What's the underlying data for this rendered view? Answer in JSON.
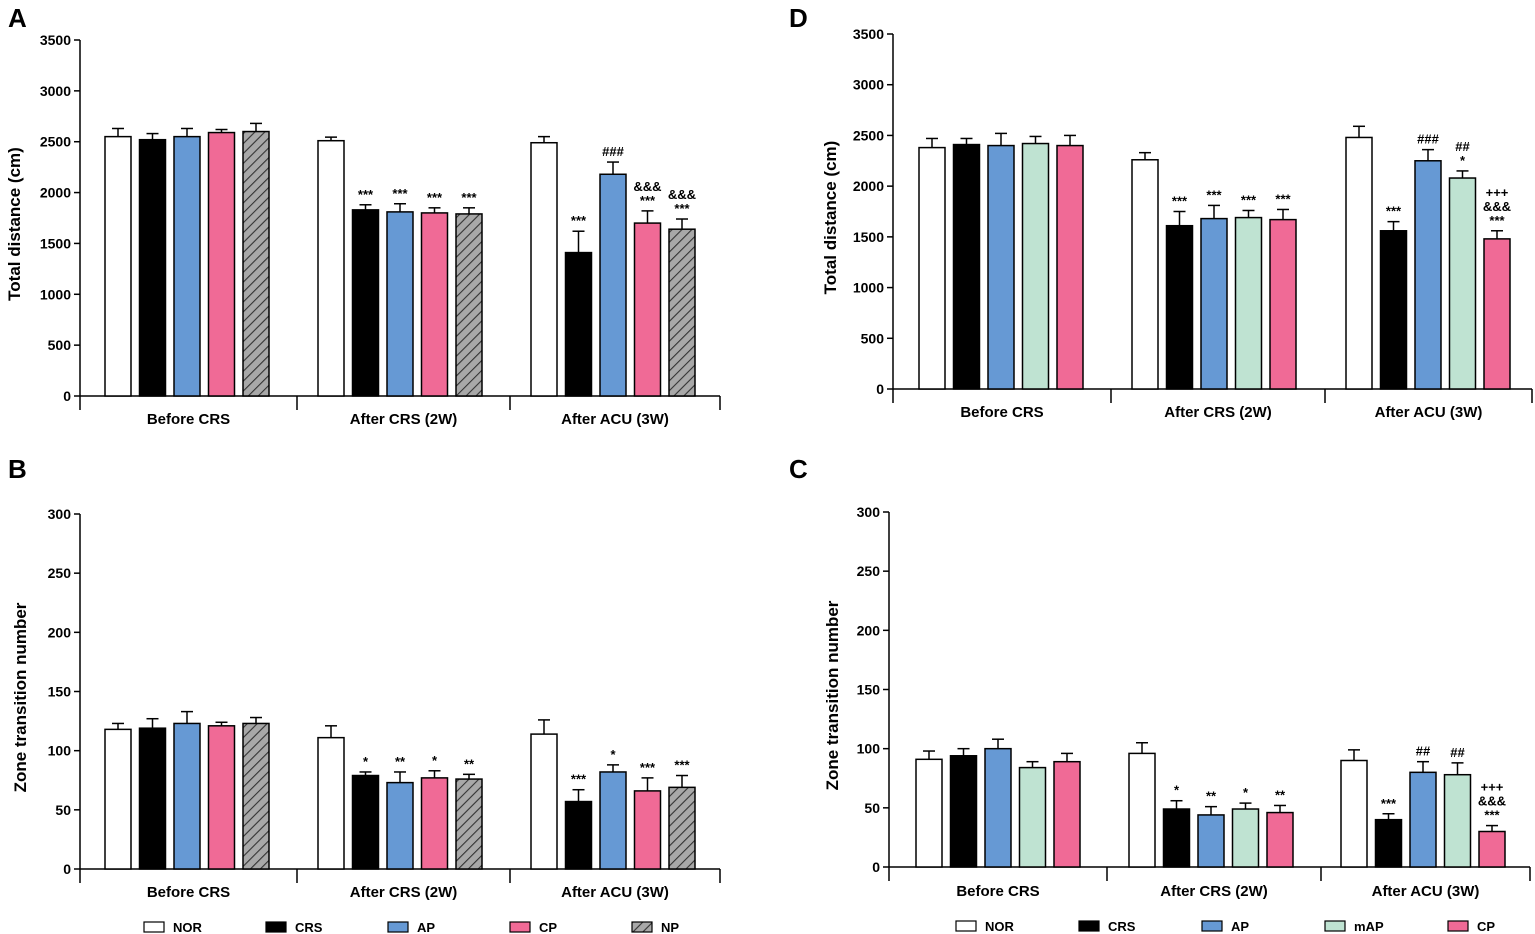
{
  "colors": {
    "NOR": "#ffffff",
    "CRS": "#000000",
    "AP": "#6699d4",
    "CP": "#f06a96",
    "NP": "#a8a8a8",
    "mAP": "#bfe3d2"
  },
  "legend_left": [
    {
      "key": "NOR",
      "label": "NOR"
    },
    {
      "key": "CRS",
      "label": "CRS"
    },
    {
      "key": "AP",
      "label": "AP"
    },
    {
      "key": "CP",
      "label": "CP"
    },
    {
      "key": "NP",
      "label": "NP"
    }
  ],
  "legend_right": [
    {
      "key": "NOR",
      "label": "NOR"
    },
    {
      "key": "CRS",
      "label": "CRS"
    },
    {
      "key": "AP",
      "label": "AP"
    },
    {
      "key": "mAP",
      "label": "mAP"
    },
    {
      "key": "CP",
      "label": "CP"
    }
  ],
  "chart_data": [
    {
      "panel": "A",
      "type": "bar",
      "ylabel": "Total distance (cm)",
      "ylim": [
        0,
        3500
      ],
      "yticks": [
        0,
        500,
        1000,
        1500,
        2000,
        2500,
        3000,
        3500
      ],
      "categories": [
        "Before CRS",
        "After CRS (2W)",
        "After ACU (3W)"
      ],
      "series": [
        {
          "name": "NOR",
          "values": [
            2550,
            2510,
            2490
          ],
          "errors": [
            80,
            35,
            60
          ],
          "annotations": [
            "",
            "",
            ""
          ]
        },
        {
          "name": "CRS",
          "values": [
            2520,
            1830,
            1410
          ],
          "errors": [
            60,
            50,
            210
          ],
          "annotations": [
            "",
            "***",
            "***"
          ]
        },
        {
          "name": "AP",
          "values": [
            2550,
            1810,
            2180
          ],
          "errors": [
            80,
            80,
            120
          ],
          "annotations": [
            "",
            "***",
            "###"
          ]
        },
        {
          "name": "CP",
          "values": [
            2590,
            1800,
            1700
          ],
          "errors": [
            30,
            50,
            120
          ],
          "annotations": [
            "",
            "***",
            "&&&\n***"
          ]
        },
        {
          "name": "NP",
          "values": [
            2600,
            1790,
            1640
          ],
          "errors": [
            80,
            60,
            100
          ],
          "annotations": [
            "",
            "***",
            "&&&\n***"
          ]
        }
      ]
    },
    {
      "panel": "D",
      "type": "bar",
      "ylabel": "Total distance (cm)",
      "ylim": [
        0,
        3500
      ],
      "yticks": [
        0,
        500,
        1000,
        1500,
        2000,
        2500,
        3000,
        3500
      ],
      "categories": [
        "Before CRS",
        "After CRS (2W)",
        "After ACU (3W)"
      ],
      "series": [
        {
          "name": "NOR",
          "values": [
            2380,
            2260,
            2480
          ],
          "errors": [
            90,
            70,
            110
          ],
          "annotations": [
            "",
            "",
            ""
          ]
        },
        {
          "name": "CRS",
          "values": [
            2410,
            1610,
            1560
          ],
          "errors": [
            60,
            140,
            90
          ],
          "annotations": [
            "",
            "***",
            "***"
          ]
        },
        {
          "name": "AP",
          "values": [
            2400,
            1680,
            2250
          ],
          "errors": [
            120,
            130,
            110
          ],
          "annotations": [
            "",
            "***",
            "###"
          ]
        },
        {
          "name": "mAP",
          "values": [
            2420,
            1690,
            2080
          ],
          "errors": [
            70,
            70,
            70
          ],
          "annotations": [
            "",
            "***",
            "##\n*"
          ]
        },
        {
          "name": "CP",
          "values": [
            2400,
            1670,
            1480
          ],
          "errors": [
            100,
            100,
            80
          ],
          "annotations": [
            "",
            "***",
            "+++\n&&&\n***"
          ]
        }
      ]
    },
    {
      "panel": "B",
      "type": "bar",
      "ylabel": "Zone transition number",
      "ylim": [
        0,
        300
      ],
      "yticks": [
        0,
        50,
        100,
        150,
        200,
        250,
        300
      ],
      "categories": [
        "Before CRS",
        "After CRS (2W)",
        "After ACU (3W)"
      ],
      "series": [
        {
          "name": "NOR",
          "values": [
            118,
            111,
            114
          ],
          "errors": [
            5,
            10,
            12
          ],
          "annotations": [
            "",
            "",
            ""
          ]
        },
        {
          "name": "CRS",
          "values": [
            119,
            79,
            57
          ],
          "errors": [
            8,
            3,
            10
          ],
          "annotations": [
            "",
            "*",
            "***"
          ]
        },
        {
          "name": "AP",
          "values": [
            123,
            73,
            82
          ],
          "errors": [
            10,
            9,
            6
          ],
          "annotations": [
            "",
            "**",
            "*"
          ]
        },
        {
          "name": "CP",
          "values": [
            121,
            77,
            66
          ],
          "errors": [
            3,
            6,
            11
          ],
          "annotations": [
            "",
            "*",
            "***"
          ]
        },
        {
          "name": "NP",
          "values": [
            123,
            76,
            69
          ],
          "errors": [
            5,
            4,
            10
          ],
          "annotations": [
            "",
            "**",
            "***"
          ]
        }
      ]
    },
    {
      "panel": "C",
      "type": "bar",
      "ylabel": "Zone transition number",
      "ylim": [
        0,
        300
      ],
      "yticks": [
        0,
        50,
        100,
        150,
        200,
        250,
        300
      ],
      "categories": [
        "Before CRS",
        "After CRS (2W)",
        "After ACU (3W)"
      ],
      "series": [
        {
          "name": "NOR",
          "values": [
            91,
            96,
            90
          ],
          "errors": [
            7,
            9,
            9
          ],
          "annotations": [
            "",
            "",
            ""
          ]
        },
        {
          "name": "CRS",
          "values": [
            94,
            49,
            40
          ],
          "errors": [
            6,
            7,
            5
          ],
          "annotations": [
            "",
            "*",
            "***"
          ]
        },
        {
          "name": "AP",
          "values": [
            100,
            44,
            80
          ],
          "errors": [
            8,
            7,
            9
          ],
          "annotations": [
            "",
            "**",
            "##"
          ]
        },
        {
          "name": "mAP",
          "values": [
            84,
            49,
            78
          ],
          "errors": [
            5,
            5,
            10
          ],
          "annotations": [
            "",
            "*",
            "##"
          ]
        },
        {
          "name": "CP",
          "values": [
            89,
            46,
            30
          ],
          "errors": [
            7,
            6,
            5
          ],
          "annotations": [
            "",
            "**",
            "+++\n&&&\n***"
          ]
        }
      ]
    }
  ]
}
